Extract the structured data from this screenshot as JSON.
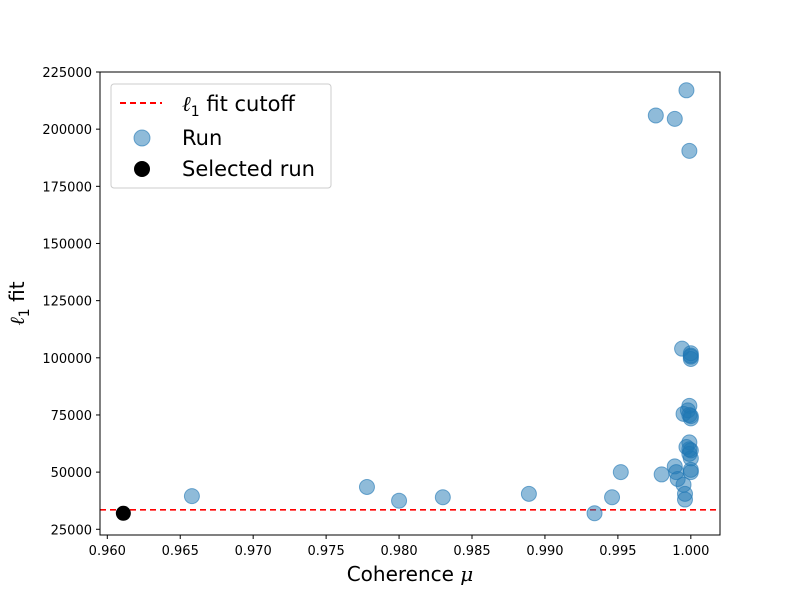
{
  "chart_data": {
    "type": "scatter",
    "title": "",
    "xlabel_text": "Coherence ",
    "xlabel_symbol": "μ",
    "ylabel_symbol": "ℓ",
    "ylabel_sub": "1",
    "ylabel_text": " fit",
    "xlim": [
      0.9595,
      1.002
    ],
    "ylim": [
      22500,
      225000
    ],
    "x_ticks": [
      0.96,
      0.965,
      0.97,
      0.975,
      0.98,
      0.985,
      0.99,
      0.995,
      1.0
    ],
    "x_tick_labels": [
      "0.960",
      "0.965",
      "0.970",
      "0.975",
      "0.980",
      "0.985",
      "0.990",
      "0.995",
      "1.000"
    ],
    "y_ticks": [
      25000,
      50000,
      75000,
      100000,
      125000,
      150000,
      175000,
      200000,
      225000
    ],
    "y_tick_labels": [
      "25000",
      "50000",
      "75000",
      "100000",
      "125000",
      "150000",
      "175000",
      "200000",
      "225000"
    ],
    "grid": false,
    "legend_position": "top-left",
    "cutoff": {
      "y": 33500,
      "label_symbol": "ℓ",
      "label_sub": "1",
      "label_text": " fit cutoff",
      "color": "#ff0000"
    },
    "series": [
      {
        "name": "Run",
        "color": "#1f77b4",
        "points": [
          [
            0.9658,
            39500
          ],
          [
            0.9778,
            43500
          ],
          [
            0.98,
            37500
          ],
          [
            0.983,
            39000
          ],
          [
            0.9889,
            40500
          ],
          [
            0.9934,
            32000
          ],
          [
            0.9946,
            39000
          ],
          [
            0.9952,
            50000
          ],
          [
            0.9976,
            206000
          ],
          [
            0.998,
            49000
          ],
          [
            0.9989,
            52500
          ],
          [
            0.9989,
            204500
          ],
          [
            0.999,
            50000
          ],
          [
            0.9991,
            47000
          ],
          [
            0.9994,
            104000
          ],
          [
            0.9995,
            44500
          ],
          [
            0.9995,
            75500
          ],
          [
            0.9996,
            40500
          ],
          [
            0.9996,
            38000
          ],
          [
            0.9997,
            61000
          ],
          [
            0.9997,
            217000
          ],
          [
            0.9998,
            77000
          ],
          [
            0.9999,
            79000
          ],
          [
            0.9999,
            63000
          ],
          [
            0.9999,
            58000
          ],
          [
            0.9999,
            75000
          ],
          [
            0.9999,
            60000
          ],
          [
            0.9999,
            190500
          ],
          [
            1.0,
            99500
          ],
          [
            1.0,
            100500
          ],
          [
            1.0,
            102000
          ],
          [
            1.0,
            101000
          ],
          [
            1.0,
            73500
          ],
          [
            1.0,
            74500
          ],
          [
            1.0,
            56000
          ],
          [
            1.0,
            59500
          ],
          [
            1.0,
            51000
          ],
          [
            1.0,
            50000
          ]
        ]
      },
      {
        "name": "Selected run",
        "color": "#000000",
        "points": [
          [
            0.9611,
            32000
          ]
        ]
      }
    ]
  }
}
